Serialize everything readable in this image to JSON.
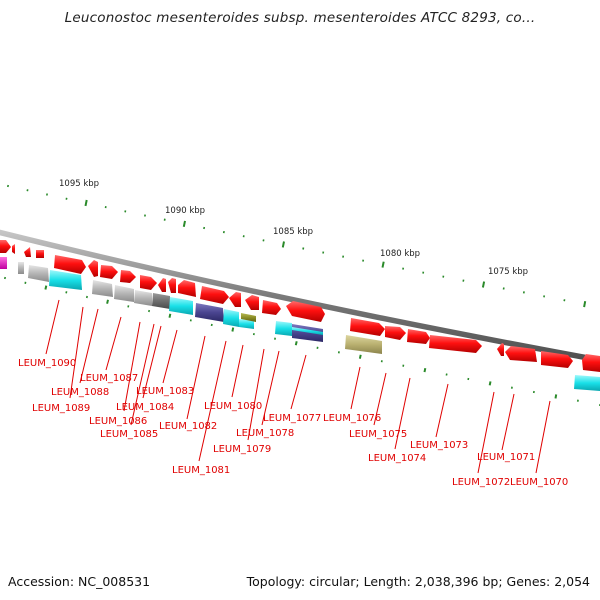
{
  "title": "Leuconostoc mesenteroides subsp. mesenteroides ATCC 8293, co...",
  "footer": {
    "accession": "Accession: NC_008531",
    "topology": "Topology: circular; Length: 2,038,396 bp; Genes: 2,054"
  },
  "colors": {
    "backbone": "#8a8a8a",
    "cds_red": "#ff1010",
    "cyan": "#19e0e8",
    "gray": "#b5b5b5",
    "dark_gray": "#6e6e6e",
    "navy": "#4a4590",
    "olive": "#b9b070",
    "tick_green": "#2a8a2a",
    "label_red": "#e00000"
  },
  "kbp_labels": [
    "1095 kbp",
    "1090 kbp",
    "1085 kbp",
    "1080 kbp",
    "1075 kbp"
  ],
  "gene_labels": [
    "LEUM_1090",
    "LEUM_1089",
    "LEUM_1088",
    "LEUM_1087",
    "LEUM_1086",
    "LEUM_1085",
    "LEUM_1084",
    "LEUM_1083",
    "LEUM_1082",
    "LEUM_1081",
    "LEUM_1080",
    "LEUM_1079",
    "LEUM_1078",
    "LEUM_1077",
    "LEUM_1076",
    "LEUM_1075",
    "LEUM_1074",
    "LEUM_1073",
    "LEUM_1072",
    "LEUM_1071",
    "LEUM_1070"
  ]
}
